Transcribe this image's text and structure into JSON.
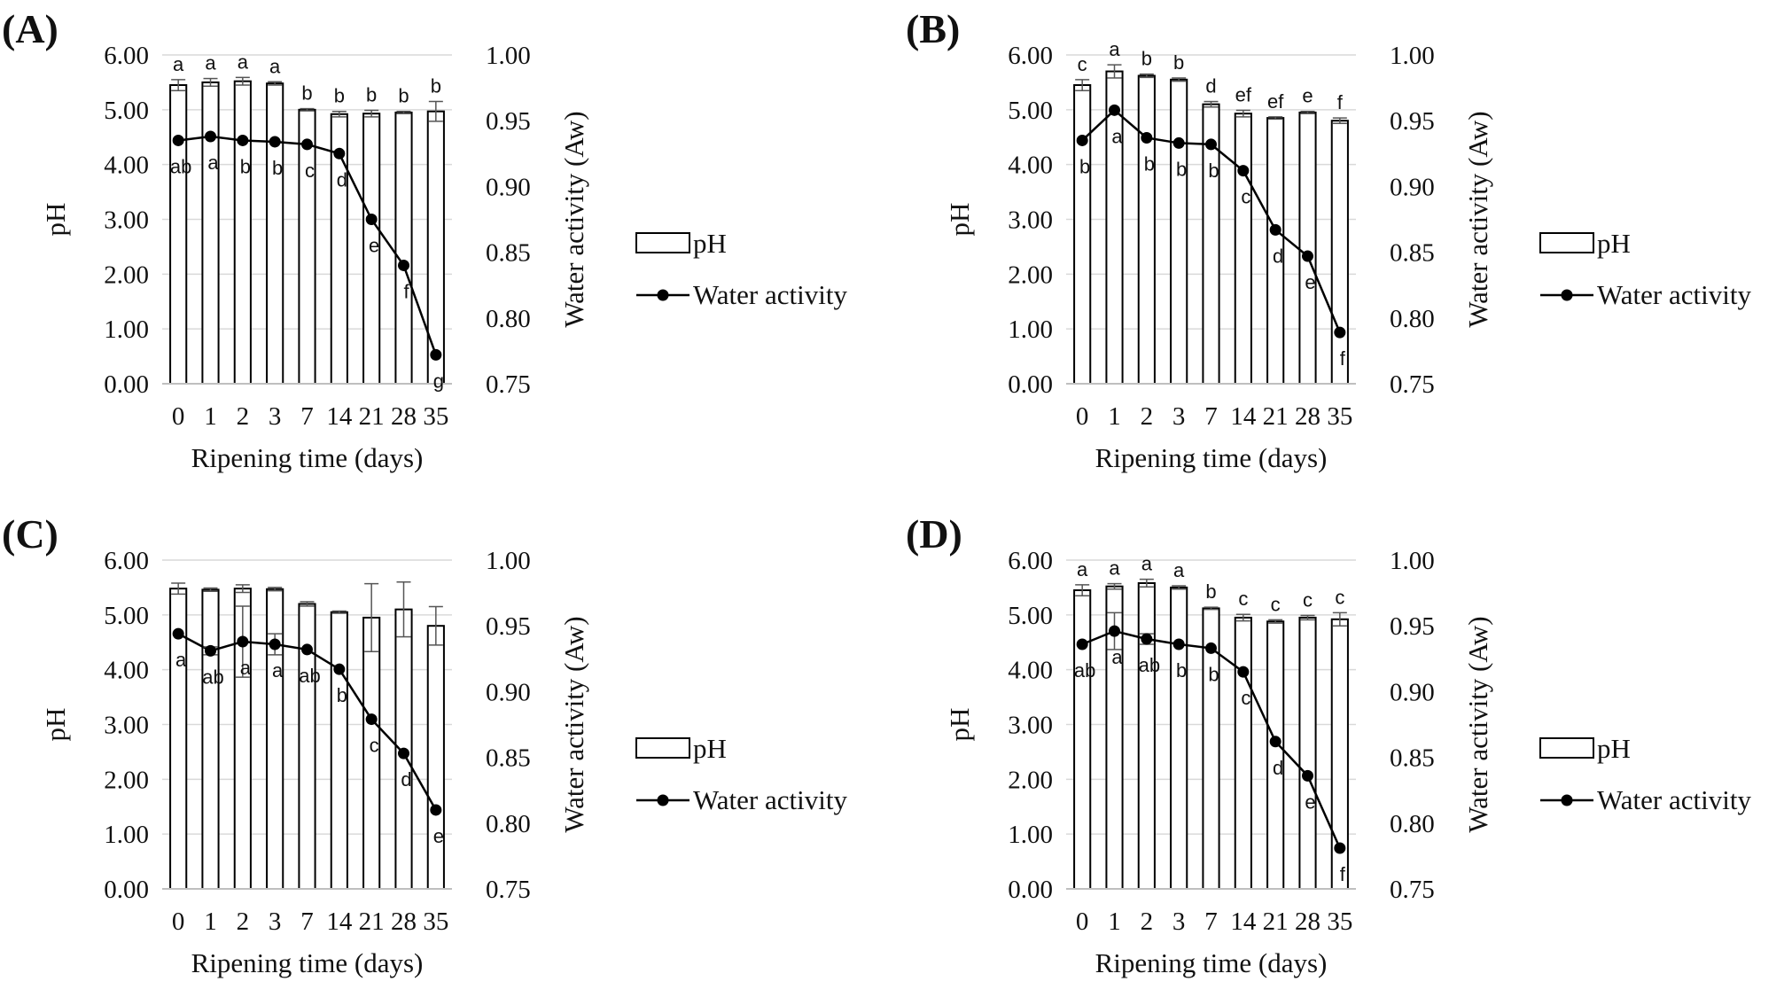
{
  "figure": {
    "panels": [
      "(A)",
      "(B)",
      "(C)",
      "(D)"
    ],
    "legend": {
      "bar": "pH",
      "line": "Water activity"
    }
  },
  "chart_data": [
    {
      "panel": "(A)",
      "type": "bar+line",
      "categories": [
        "0",
        "1",
        "2",
        "3",
        "7",
        "14",
        "21",
        "28",
        "35"
      ],
      "xlabel": "Ripening time (days)",
      "ylabel": "pH",
      "y2label": "Water activity (Aw)",
      "ylim": [
        0,
        6
      ],
      "yticks": [
        "0.00",
        "1.00",
        "2.00",
        "3.00",
        "4.00",
        "5.00",
        "6.00"
      ],
      "y2lim": [
        0.75,
        1.0
      ],
      "y2ticks": [
        "0.75",
        "0.80",
        "0.85",
        "0.90",
        "0.95",
        "1.00"
      ],
      "series": [
        {
          "name": "pH",
          "kind": "bar",
          "values": [
            5.45,
            5.5,
            5.52,
            5.48,
            5.0,
            4.92,
            4.93,
            4.95,
            4.97
          ],
          "errors": [
            0.1,
            0.07,
            0.07,
            0.03,
            0.02,
            0.05,
            0.06,
            0.02,
            0.18
          ],
          "letters": [
            "a",
            "a",
            "a",
            "a",
            "b",
            "b",
            "b",
            "b",
            "b"
          ]
        },
        {
          "name": "Water activity",
          "kind": "line",
          "values": [
            0.935,
            0.938,
            0.935,
            0.934,
            0.932,
            0.925,
            0.875,
            0.84,
            0.772
          ],
          "letters": [
            "ab",
            "a",
            "b",
            "b",
            "c",
            "d",
            "e",
            "f",
            "g"
          ]
        }
      ],
      "legend_position": "right"
    },
    {
      "panel": "(B)",
      "type": "bar+line",
      "categories": [
        "0",
        "1",
        "2",
        "3",
        "7",
        "14",
        "21",
        "28",
        "35"
      ],
      "xlabel": "Ripening time (days)",
      "ylabel": "pH",
      "y2label": "Water activity (Aw)",
      "ylim": [
        0,
        6
      ],
      "yticks": [
        "0.00",
        "1.00",
        "2.00",
        "3.00",
        "4.00",
        "5.00",
        "6.00"
      ],
      "y2lim": [
        0.75,
        1.0
      ],
      "y2ticks": [
        "0.75",
        "0.80",
        "0.85",
        "0.90",
        "0.95",
        "1.00"
      ],
      "series": [
        {
          "name": "pH",
          "kind": "bar",
          "values": [
            5.45,
            5.7,
            5.62,
            5.55,
            5.1,
            4.93,
            4.85,
            4.95,
            4.8
          ],
          "errors": [
            0.1,
            0.12,
            0.03,
            0.03,
            0.05,
            0.06,
            0.02,
            0.02,
            0.05
          ],
          "letters": [
            "c",
            "a",
            "b",
            "b",
            "d",
            "ef",
            "ef",
            "e",
            "f"
          ]
        },
        {
          "name": "Water activity",
          "kind": "line",
          "values": [
            0.935,
            0.958,
            0.937,
            0.933,
            0.932,
            0.912,
            0.867,
            0.847,
            0.789
          ],
          "letters": [
            "b",
            "a",
            "b",
            "b",
            "b",
            "c",
            "d",
            "e",
            "f"
          ]
        }
      ],
      "legend_position": "right"
    },
    {
      "panel": "(C)",
      "type": "bar+line",
      "categories": [
        "0",
        "1",
        "2",
        "3",
        "7",
        "14",
        "21",
        "28",
        "35"
      ],
      "xlabel": "Ripening time (days)",
      "ylabel": "pH",
      "y2label": "Water activity (Aw)",
      "ylim": [
        0,
        6
      ],
      "yticks": [
        "0.00",
        "1.00",
        "2.00",
        "3.00",
        "4.00",
        "5.00",
        "6.00"
      ],
      "y2lim": [
        0.75,
        1.0
      ],
      "y2ticks": [
        "0.75",
        "0.80",
        "0.85",
        "0.90",
        "0.95",
        "1.00"
      ],
      "series": [
        {
          "name": "pH",
          "kind": "bar",
          "values": [
            5.48,
            5.46,
            5.48,
            5.47,
            5.2,
            5.05,
            4.95,
            5.1,
            4.8
          ],
          "errors": [
            0.1,
            0.03,
            0.07,
            0.03,
            0.04,
            0.02,
            0.62,
            0.5,
            0.35
          ],
          "letters": []
        },
        {
          "name": "Water activity",
          "kind": "line",
          "values": [
            0.944,
            0.931,
            0.938,
            0.936,
            0.932,
            0.917,
            0.879,
            0.853,
            0.81
          ],
          "errors": [
            0.0,
            0.003,
            0.027,
            0.008,
            0.0,
            0.0,
            0.0,
            0.0,
            0.0
          ],
          "letters": [
            "a",
            "ab",
            "a",
            "a",
            "ab",
            "b",
            "c",
            "d",
            "e"
          ]
        }
      ],
      "legend_position": "right"
    },
    {
      "panel": "(D)",
      "type": "bar+line",
      "categories": [
        "0",
        "1",
        "2",
        "3",
        "7",
        "14",
        "21",
        "28",
        "35"
      ],
      "xlabel": "Ripening time (days)",
      "ylabel": "pH",
      "y2label": "Water activity (Aw)",
      "ylim": [
        0,
        6
      ],
      "yticks": [
        "0.00",
        "1.00",
        "2.00",
        "3.00",
        "4.00",
        "5.00",
        "6.00"
      ],
      "y2lim": [
        0.75,
        1.0
      ],
      "y2ticks": [
        "0.75",
        "0.80",
        "0.85",
        "0.90",
        "0.95",
        "1.00"
      ],
      "series": [
        {
          "name": "pH",
          "kind": "bar",
          "values": [
            5.45,
            5.52,
            5.58,
            5.5,
            5.12,
            4.95,
            4.88,
            4.95,
            4.92
          ],
          "errors": [
            0.1,
            0.05,
            0.07,
            0.03,
            0.02,
            0.06,
            0.03,
            0.04,
            0.12
          ],
          "letters": [
            "a",
            "a",
            "a",
            "a",
            "b",
            "c",
            "c",
            "c",
            "c"
          ]
        },
        {
          "name": "Water activity",
          "kind": "line",
          "values": [
            0.936,
            0.946,
            0.94,
            0.936,
            0.933,
            0.915,
            0.862,
            0.836,
            0.781
          ],
          "errors": [
            0.0,
            0.014,
            0.004,
            0.0,
            0.0,
            0.0,
            0.0,
            0.0,
            0.0
          ],
          "letters": [
            "ab",
            "a",
            "ab",
            "b",
            "b",
            "c",
            "d",
            "e",
            "f"
          ]
        }
      ],
      "legend_position": "right"
    }
  ]
}
